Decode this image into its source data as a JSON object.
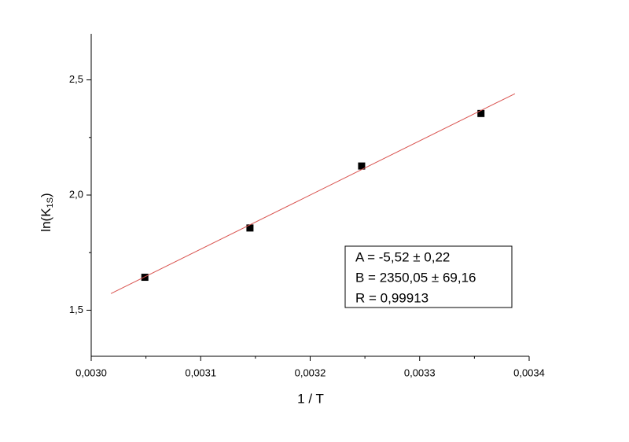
{
  "chart_data": {
    "type": "scatter",
    "xlabel": "1 / T",
    "ylabel_parts": [
      "ln(K",
      "1S",
      ")"
    ],
    "xlim": [
      0.003,
      0.0034
    ],
    "ylim": [
      1.3,
      2.7
    ],
    "xticks": [
      {
        "value": 0.003,
        "label": "0,0030"
      },
      {
        "value": 0.0031,
        "label": "0,0031"
      },
      {
        "value": 0.0032,
        "label": "0,0032"
      },
      {
        "value": 0.0033,
        "label": "0,0033"
      },
      {
        "value": 0.0034,
        "label": "0,0034"
      }
    ],
    "xminorticks": [
      0.00305,
      0.00315,
      0.00325,
      0.00335
    ],
    "yticks": [
      {
        "value": 1.5,
        "label": "1,5"
      },
      {
        "value": 2.0,
        "label": "2,0"
      },
      {
        "value": 2.5,
        "label": "2,5"
      }
    ],
    "yminorticks": [
      1.75,
      2.25
    ],
    "series": [
      {
        "kind": "points",
        "color": "#000000",
        "x": [
          0.003049,
          0.003145,
          0.003247,
          0.003356
        ],
        "values": [
          1.643,
          1.857,
          2.126,
          2.354
        ]
      },
      {
        "kind": "fit",
        "color": "#d9534f",
        "x": [
          0.003018,
          0.003387
        ],
        "values": [
          1.572,
          2.44
        ]
      }
    ],
    "annotation": [
      "A = -5,52 ± 0,22",
      "B = 2350,05 ± 69,16",
      "R = 0,99913"
    ]
  }
}
